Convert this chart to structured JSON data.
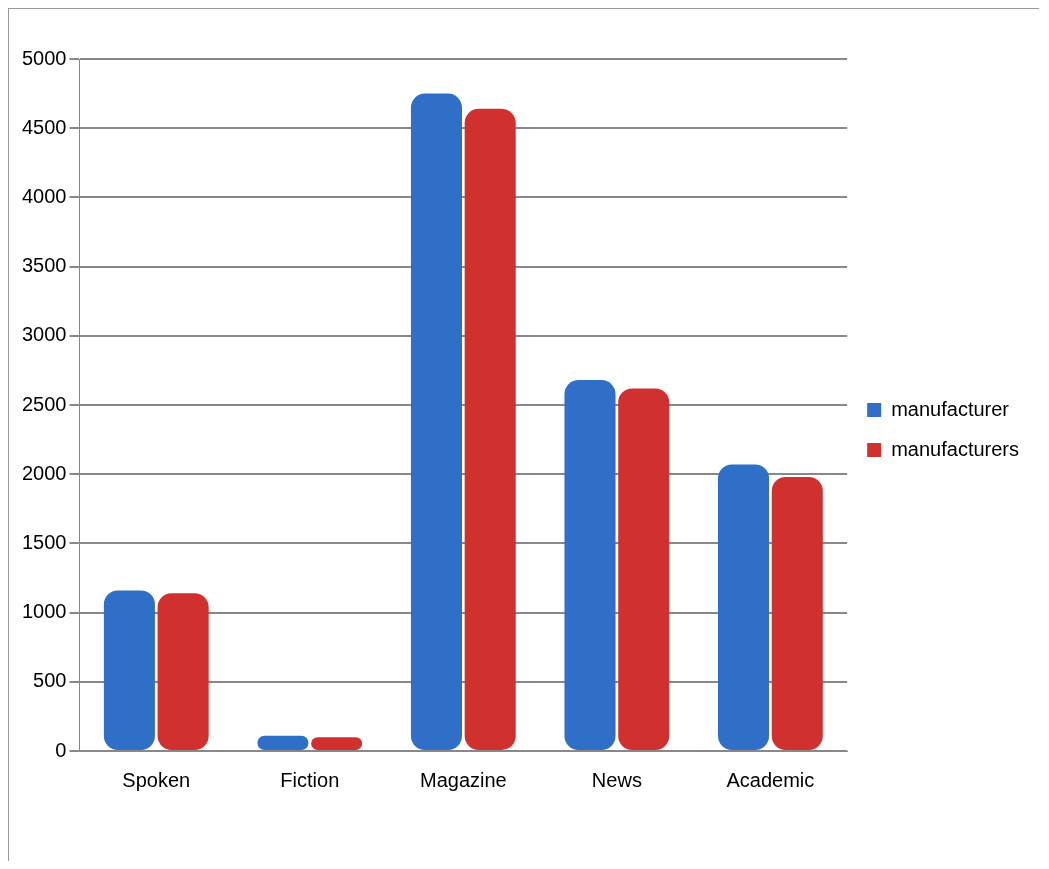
{
  "chart_data": {
    "type": "bar",
    "categories": [
      "Spoken",
      "Fiction",
      "Magazine",
      "News",
      "Academic"
    ],
    "series": [
      {
        "name": "manufacturer",
        "color": "#2f6fc7",
        "values": [
          1160,
          110,
          4750,
          2680,
          2070
        ]
      },
      {
        "name": "manufacturers",
        "color": "#d0302e",
        "values": [
          1140,
          100,
          4640,
          2620,
          1980
        ]
      }
    ],
    "ylim": [
      0,
      5000
    ],
    "yticks": [
      0,
      500,
      1000,
      1500,
      2000,
      2500,
      3000,
      3500,
      4000,
      4500,
      5000
    ],
    "grid": "y",
    "legend": "right"
  }
}
